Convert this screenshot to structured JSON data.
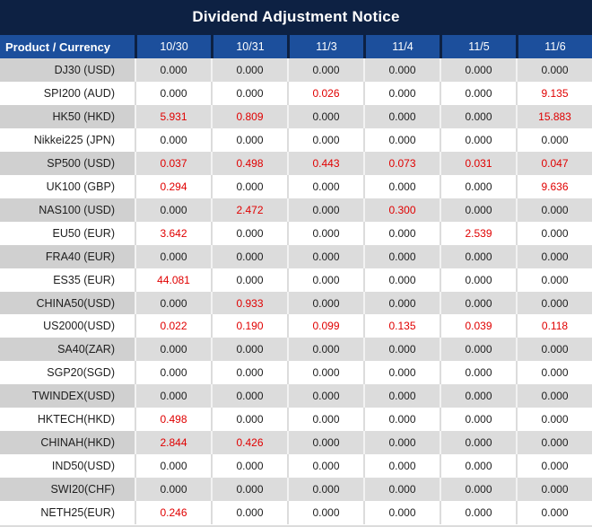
{
  "title": "Dividend Adjustment Notice",
  "colors": {
    "title_bg": "#0d2143",
    "header_bg": "#1c4f9c",
    "header_border": "#0d2143",
    "row_gray": "#dcdcdc",
    "label_gray": "#d0d0d0",
    "separator_white": "#f2f2f2",
    "white_row_separator": "#dcdcdc",
    "value_black": "#1e1e1e",
    "value_red": "#e00000"
  },
  "table": {
    "product_column_header": "Product / Currency",
    "date_columns": [
      "10/30",
      "10/31",
      "11/3",
      "11/4",
      "11/5",
      "11/6"
    ],
    "rows": [
      {
        "product": "DJ30 (USD)",
        "values": [
          "0.000",
          "0.000",
          "0.000",
          "0.000",
          "0.000",
          "0.000"
        ],
        "red": [
          false,
          false,
          false,
          false,
          false,
          false
        ]
      },
      {
        "product": "SPI200 (AUD)",
        "values": [
          "0.000",
          "0.000",
          "0.026",
          "0.000",
          "0.000",
          "9.135"
        ],
        "red": [
          false,
          false,
          true,
          false,
          false,
          true
        ]
      },
      {
        "product": "HK50 (HKD)",
        "values": [
          "5.931",
          "0.809",
          "0.000",
          "0.000",
          "0.000",
          "15.883"
        ],
        "red": [
          true,
          true,
          false,
          false,
          false,
          true
        ]
      },
      {
        "product": "Nikkei225 (JPN)",
        "values": [
          "0.000",
          "0.000",
          "0.000",
          "0.000",
          "0.000",
          "0.000"
        ],
        "red": [
          false,
          false,
          false,
          false,
          false,
          false
        ]
      },
      {
        "product": "SP500 (USD)",
        "values": [
          "0.037",
          "0.498",
          "0.443",
          "0.073",
          "0.031",
          "0.047"
        ],
        "red": [
          true,
          true,
          true,
          true,
          true,
          true
        ]
      },
      {
        "product": "UK100 (GBP)",
        "values": [
          "0.294",
          "0.000",
          "0.000",
          "0.000",
          "0.000",
          "9.636"
        ],
        "red": [
          true,
          false,
          false,
          false,
          false,
          true
        ]
      },
      {
        "product": "NAS100 (USD)",
        "values": [
          "0.000",
          "2.472",
          "0.000",
          "0.300",
          "0.000",
          "0.000"
        ],
        "red": [
          false,
          true,
          false,
          true,
          false,
          false
        ]
      },
      {
        "product": "EU50 (EUR)",
        "values": [
          "3.642",
          "0.000",
          "0.000",
          "0.000",
          "2.539",
          "0.000"
        ],
        "red": [
          true,
          false,
          false,
          false,
          true,
          false
        ]
      },
      {
        "product": "FRA40 (EUR)",
        "values": [
          "0.000",
          "0.000",
          "0.000",
          "0.000",
          "0.000",
          "0.000"
        ],
        "red": [
          false,
          false,
          false,
          false,
          false,
          false
        ]
      },
      {
        "product": "ES35 (EUR)",
        "values": [
          "44.081",
          "0.000",
          "0.000",
          "0.000",
          "0.000",
          "0.000"
        ],
        "red": [
          true,
          false,
          false,
          false,
          false,
          false
        ]
      },
      {
        "product": "CHINA50(USD)",
        "values": [
          "0.000",
          "0.933",
          "0.000",
          "0.000",
          "0.000",
          "0.000"
        ],
        "red": [
          false,
          true,
          false,
          false,
          false,
          false
        ]
      },
      {
        "product": "US2000(USD)",
        "values": [
          "0.022",
          "0.190",
          "0.099",
          "0.135",
          "0.039",
          "0.118"
        ],
        "red": [
          true,
          true,
          true,
          true,
          true,
          true
        ]
      },
      {
        "product": "SA40(ZAR)",
        "values": [
          "0.000",
          "0.000",
          "0.000",
          "0.000",
          "0.000",
          "0.000"
        ],
        "red": [
          false,
          false,
          false,
          false,
          false,
          false
        ]
      },
      {
        "product": "SGP20(SGD)",
        "values": [
          "0.000",
          "0.000",
          "0.000",
          "0.000",
          "0.000",
          "0.000"
        ],
        "red": [
          false,
          false,
          false,
          false,
          false,
          false
        ]
      },
      {
        "product": "TWINDEX(USD)",
        "values": [
          "0.000",
          "0.000",
          "0.000",
          "0.000",
          "0.000",
          "0.000"
        ],
        "red": [
          false,
          false,
          false,
          false,
          false,
          false
        ]
      },
      {
        "product": "HKTECH(HKD)",
        "values": [
          "0.498",
          "0.000",
          "0.000",
          "0.000",
          "0.000",
          "0.000"
        ],
        "red": [
          true,
          false,
          false,
          false,
          false,
          false
        ]
      },
      {
        "product": "CHINAH(HKD)",
        "values": [
          "2.844",
          "0.426",
          "0.000",
          "0.000",
          "0.000",
          "0.000"
        ],
        "red": [
          true,
          true,
          false,
          false,
          false,
          false
        ]
      },
      {
        "product": "IND50(USD)",
        "values": [
          "0.000",
          "0.000",
          "0.000",
          "0.000",
          "0.000",
          "0.000"
        ],
        "red": [
          false,
          false,
          false,
          false,
          false,
          false
        ]
      },
      {
        "product": "SWI20(CHF)",
        "values": [
          "0.000",
          "0.000",
          "0.000",
          "0.000",
          "0.000",
          "0.000"
        ],
        "red": [
          false,
          false,
          false,
          false,
          false,
          false
        ]
      },
      {
        "product": "NETH25(EUR)",
        "values": [
          "0.246",
          "0.000",
          "0.000",
          "0.000",
          "0.000",
          "0.000"
        ],
        "red": [
          true,
          false,
          false,
          false,
          false,
          false
        ]
      }
    ]
  }
}
